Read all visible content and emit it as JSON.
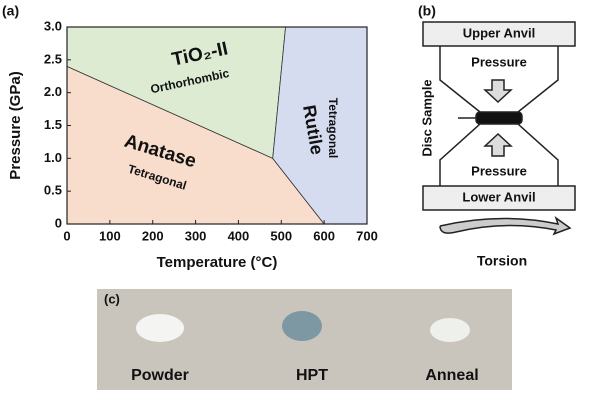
{
  "panel_labels": [
    "(a)",
    "(b)",
    "(c)"
  ],
  "chart_data": {
    "type": "phase",
    "xlabel": "Temperature (°C)",
    "ylabel": "Pressure (GPa)",
    "xlim": [
      0,
      700
    ],
    "ylim": [
      0,
      3.0
    ],
    "xticks": [
      0,
      100,
      200,
      300,
      400,
      500,
      600,
      700
    ],
    "yticks": [
      0,
      0.5,
      {
        "value": 1.0,
        "label": "1.0"
      },
      1.5,
      {
        "value": 2.0,
        "label": "2.0"
      },
      2.5,
      {
        "value": 3.0,
        "label": "3.0"
      }
    ],
    "regions": [
      {
        "name": "Anatase",
        "subname": "Tetragonal",
        "color": "#f8dccc",
        "x": [
          0,
          600,
          480,
          0
        ],
        "y": [
          0,
          0,
          1.0,
          2.4
        ]
      },
      {
        "name": "TiO₂-II",
        "subname": "Orthorhombic",
        "color": "#ddebd3",
        "x": [
          0,
          480,
          510,
          0
        ],
        "y": [
          2.4,
          1.0,
          3.0,
          3.0
        ]
      },
      {
        "name": "Rutile",
        "subname": "Tetragonal",
        "color": "#d5dcef",
        "x": [
          510,
          480,
          600,
          700,
          700
        ],
        "y": [
          3.0,
          1.0,
          0,
          0,
          3.0
        ]
      }
    ]
  },
  "schematic": {
    "upper": "Upper Anvil",
    "pressure_top": "Pressure",
    "sample": "Disc Sample",
    "pressure_bottom": "Pressure",
    "lower": "Lower Anvil",
    "torsion": "Torsion"
  },
  "photo": {
    "labels": [
      "Powder",
      "HPT",
      "Anneal"
    ]
  }
}
